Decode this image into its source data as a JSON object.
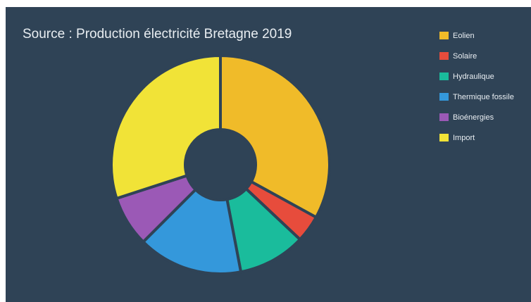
{
  "chart_data": {
    "type": "pie",
    "title": "Source : Production électricité Bretagne 2019",
    "legend": "right",
    "donut": true,
    "background": "#2f4356",
    "slices": [
      {
        "label": "Eolien",
        "value": 33,
        "color": "#f0bb29"
      },
      {
        "label": "Solaire",
        "value": 4,
        "color": "#e74c3c"
      },
      {
        "label": "Hydraulique",
        "value": 10,
        "color": "#1abc9c"
      },
      {
        "label": "Thermique fossile",
        "value": 15.5,
        "color": "#3498db"
      },
      {
        "label": "Bioénergies",
        "value": 7.5,
        "color": "#9b59b6"
      },
      {
        "label": "Import",
        "value": 30,
        "color": "#f1e337"
      }
    ]
  }
}
